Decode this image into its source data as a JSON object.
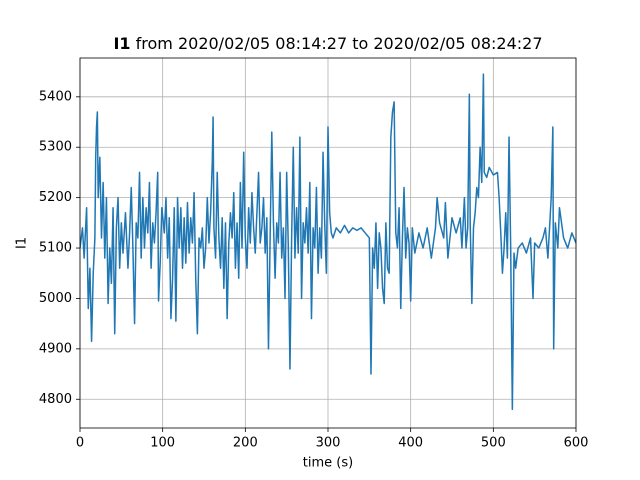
{
  "chart_data": {
    "type": "line",
    "title": {
      "name": "I1",
      "text": "from 2020/02/05 08:14:27 to 2020/02/05 08:24:27"
    },
    "xlabel": "time (s)",
    "ylabel": "I1",
    "xlim": [
      0,
      600
    ],
    "ylim": [
      4743,
      5477
    ],
    "xticks": [
      0,
      100,
      200,
      300,
      400,
      500,
      600
    ],
    "yticks": [
      4800,
      4900,
      5000,
      5100,
      5200,
      5300,
      5400
    ],
    "grid": true,
    "x": [
      0,
      3,
      5,
      8,
      10,
      12,
      14,
      16,
      18,
      19,
      20,
      21,
      22,
      24,
      26,
      28,
      30,
      32,
      34,
      36,
      38,
      40,
      42,
      44,
      46,
      48,
      50,
      52,
      55,
      58,
      60,
      62,
      64,
      66,
      68,
      70,
      72,
      74,
      76,
      78,
      80,
      82,
      84,
      86,
      88,
      90,
      92,
      94,
      95,
      97,
      99,
      102,
      104,
      106,
      108,
      110,
      112,
      114,
      116,
      118,
      120,
      122,
      124,
      126,
      128,
      130,
      132,
      134,
      136,
      138,
      140,
      142,
      144,
      146,
      148,
      150,
      152,
      154,
      156,
      158,
      160,
      161,
      162,
      164,
      166,
      168,
      170,
      172,
      174,
      176,
      178,
      180,
      182,
      184,
      186,
      188,
      190,
      192,
      194,
      196,
      198,
      200,
      202,
      204,
      206,
      208,
      210,
      212,
      214,
      216,
      218,
      220,
      222,
      224,
      226,
      228,
      230,
      232,
      234,
      236,
      238,
      240,
      242,
      244,
      246,
      248,
      250,
      252,
      254,
      256,
      258,
      260,
      262,
      264,
      266,
      268,
      270,
      272,
      274,
      276,
      278,
      280,
      282,
      284,
      286,
      288,
      290,
      292,
      294,
      296,
      298,
      300,
      302,
      304,
      306,
      310,
      315,
      320,
      325,
      330,
      335,
      340,
      345,
      350,
      352,
      354,
      356,
      358,
      360,
      362,
      364,
      366,
      368,
      370,
      372,
      374,
      376,
      378,
      380,
      382,
      384,
      386,
      388,
      390,
      392,
      394,
      396,
      398,
      400,
      402,
      405,
      410,
      415,
      420,
      425,
      430,
      432,
      435,
      440,
      442,
      445,
      450,
      455,
      460,
      462,
      465,
      467,
      469,
      471,
      472,
      474,
      476,
      478,
      480,
      482,
      484,
      486,
      488,
      489,
      492,
      495,
      500,
      505,
      507,
      509,
      511,
      513,
      515,
      517,
      519,
      521,
      523,
      525,
      527,
      530,
      535,
      540,
      545,
      548,
      550,
      555,
      560,
      563,
      566,
      568,
      570,
      572,
      573,
      575,
      578,
      580,
      585,
      590,
      595,
      600
    ],
    "series": [
      {
        "name": "I1",
        "color": "#1f77b4",
        "values": [
          5100,
          5140,
          5080,
          5180,
          4980,
          5060,
          4915,
          5050,
          5120,
          5280,
          5340,
          5370,
          5200,
          5280,
          5120,
          5230,
          5080,
          5200,
          4990,
          5100,
          5030,
          5180,
          4930,
          5140,
          5200,
          5060,
          5150,
          5090,
          5170,
          5060,
          5130,
          5220,
          5100,
          4950,
          5150,
          5120,
          5250,
          5080,
          5200,
          5100,
          5180,
          5130,
          5230,
          5060,
          5150,
          5110,
          5170,
          5250,
          4995,
          5070,
          5180,
          5130,
          5200,
          5080,
          5160,
          4960,
          5040,
          5180,
          4955,
          5200,
          5100,
          5180,
          5060,
          5160,
          5070,
          5190,
          5090,
          5160,
          5110,
          5210,
          5040,
          4930,
          5120,
          5100,
          5140,
          5060,
          5100,
          5200,
          5110,
          5170,
          5270,
          5360,
          5140,
          5080,
          5250,
          5120,
          5060,
          5160,
          5020,
          5150,
          4960,
          5110,
          5170,
          5120,
          5210,
          5060,
          5150,
          5040,
          5230,
          5100,
          5290,
          5120,
          5060,
          5180,
          5110,
          5210,
          5140,
          5090,
          5170,
          5250,
          5110,
          5140,
          5200,
          5090,
          5160,
          4900,
          5120,
          5330,
          5150,
          5040,
          5150,
          5110,
          5250,
          5080,
          5140,
          5000,
          5250,
          5100,
          4860,
          5120,
          5300,
          5080,
          5180,
          5090,
          5320,
          5000,
          5150,
          5110,
          5180,
          5090,
          5230,
          4960,
          5140,
          5100,
          5220,
          5050,
          5140,
          5080,
          5290,
          5150,
          5050,
          5340,
          5170,
          5130,
          5120,
          5140,
          5130,
          5145,
          5130,
          5140,
          5135,
          5140,
          5130,
          5120,
          4850,
          5100,
          5060,
          5150,
          5020,
          5130,
          5100,
          5020,
          4990,
          5150,
          5060,
          5050,
          5320,
          5370,
          5390,
          5130,
          5100,
          5180,
          4980,
          5120,
          5220,
          5080,
          5140,
          5110,
          4995,
          5140,
          5090,
          5130,
          5100,
          5140,
          5080,
          5140,
          5200,
          5150,
          5120,
          5190,
          5080,
          5160,
          5130,
          5160,
          5100,
          5200,
          5100,
          5140,
          5405,
          5150,
          4990,
          5140,
          5170,
          5220,
          5200,
          5300,
          5230,
          5445,
          5250,
          5240,
          5260,
          5245,
          5250,
          5200,
          5130,
          5050,
          5100,
          5170,
          5080,
          5320,
          5100,
          4780,
          5090,
          5060,
          5100,
          5110,
          5090,
          5120,
          5000,
          5110,
          5100,
          5120,
          5140,
          5080,
          5140,
          5200,
          5340,
          4900,
          5150,
          5100,
          5180,
          5120,
          5100,
          5130,
          5110
        ]
      }
    ]
  }
}
